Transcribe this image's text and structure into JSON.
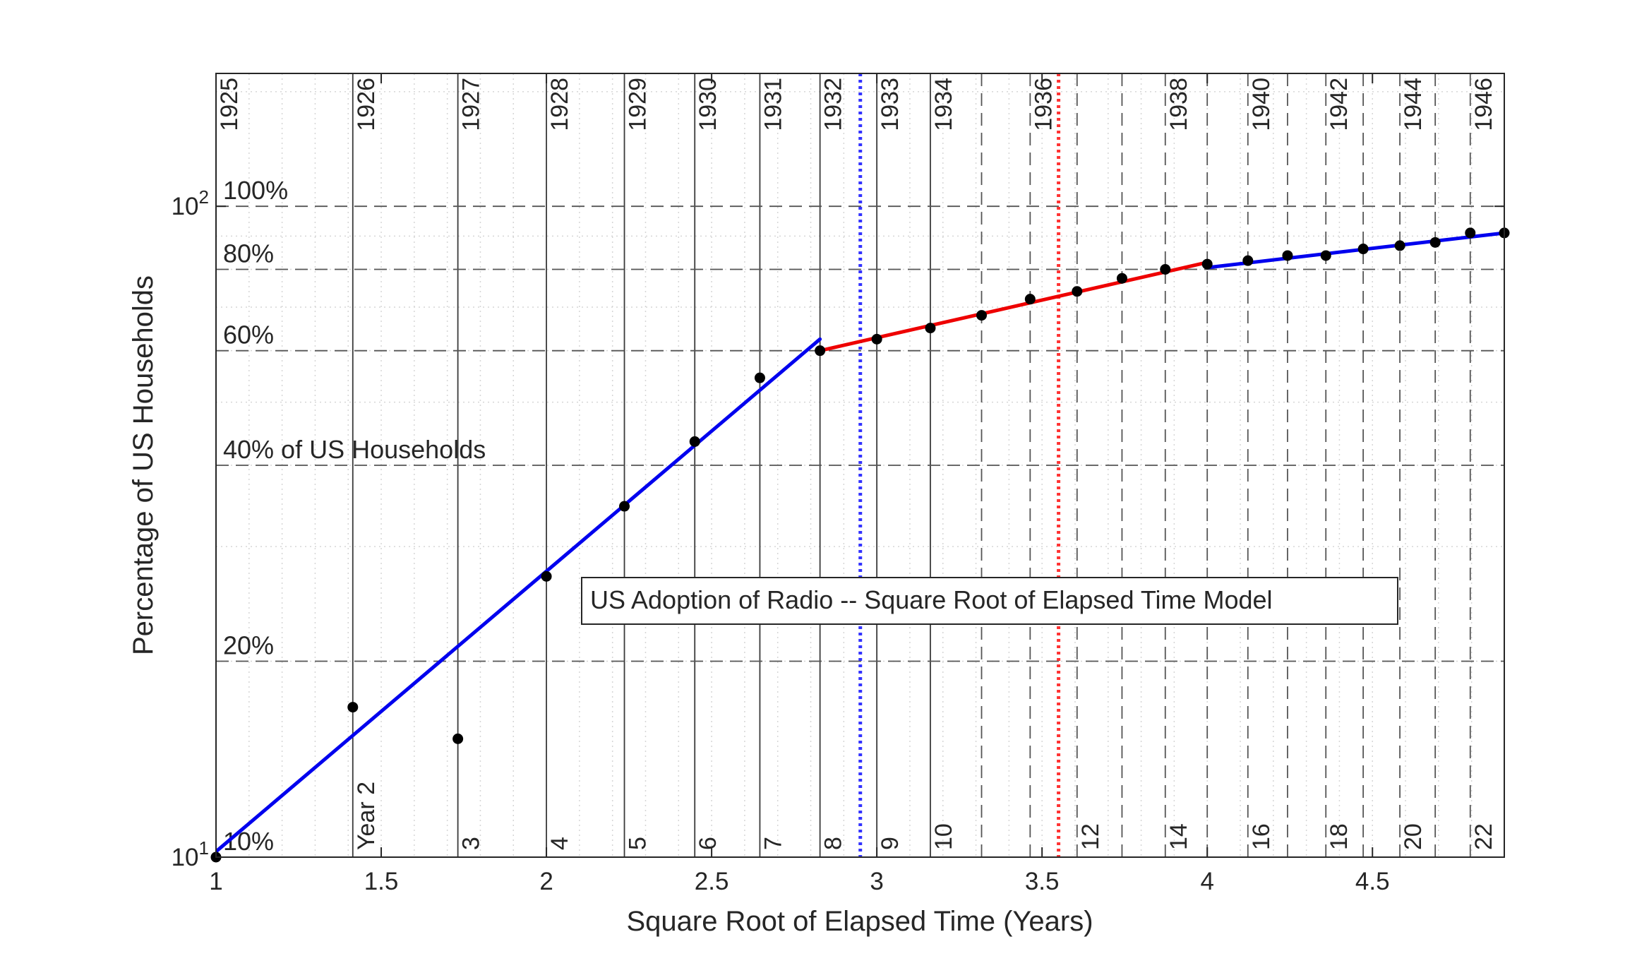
{
  "chart_data": {
    "type": "scatter",
    "title": "US Adoption of Radio -- Square Root of Elapsed Time Model",
    "xlabel": "Square Root of Elapsed Time (Years)",
    "ylabel": "Percentage of US Households",
    "x_scale": "linear",
    "y_scale": "log",
    "xlim": [
      1,
      4.899
    ],
    "ylim": [
      10,
      160
    ],
    "x_ticks": [
      1,
      1.5,
      2,
      2.5,
      3,
      3.5,
      4,
      4.5
    ],
    "x_tick_labels": [
      "1",
      "1.5",
      "2",
      "2.5",
      "3",
      "3.5",
      "4",
      "4.5"
    ],
    "y_ticks": [
      {
        "value": 10,
        "base": "10",
        "exp": "1"
      },
      {
        "value": 100,
        "base": "10",
        "exp": "2"
      }
    ],
    "grid": "minor dotted",
    "series": [
      {
        "kind": "points",
        "color": "#000000",
        "x": [
          1,
          1.414,
          1.732,
          2,
          2.236,
          2.449,
          2.646,
          2.828,
          3,
          3.162,
          3.317,
          3.464,
          3.606,
          3.742,
          3.873,
          4,
          4.123,
          4.243,
          4.359,
          4.472,
          4.583,
          4.69,
          4.796,
          4.899
        ],
        "y": [
          10,
          17,
          15.2,
          27,
          34.6,
          43.5,
          54.5,
          60,
          62.5,
          65,
          68,
          72,
          74,
          77.5,
          80,
          81.5,
          82.5,
          84,
          84,
          86,
          87,
          88,
          91,
          91
        ]
      },
      {
        "kind": "line",
        "color": "#0000ee",
        "x": [
          1,
          2.828
        ],
        "y": [
          10.2,
          62.5
        ]
      },
      {
        "kind": "line",
        "color": "#ee0000",
        "x": [
          2.828,
          4
        ],
        "y": [
          60,
          82
        ]
      },
      {
        "kind": "line",
        "color": "#0000ee",
        "x": [
          4,
          4.899
        ],
        "y": [
          80.5,
          91
        ]
      }
    ],
    "reference_lines": [
      {
        "x": 2.95,
        "color": "#3333ff",
        "style": "dotted"
      },
      {
        "x": 3.55,
        "color": "#ff3333",
        "style": "dotted"
      }
    ],
    "vertical_year_lines": [
      {
        "x": 1,
        "year": "1925",
        "count": ""
      },
      {
        "x": 1.414,
        "year": "1926",
        "count": "Year 2"
      },
      {
        "x": 1.732,
        "year": "1927",
        "count": "3"
      },
      {
        "x": 2,
        "year": "1928",
        "count": "4"
      },
      {
        "x": 2.236,
        "year": "1929",
        "count": "5"
      },
      {
        "x": 2.449,
        "year": "1930",
        "count": "6"
      },
      {
        "x": 2.646,
        "year": "1931",
        "count": "7"
      },
      {
        "x": 2.828,
        "year": "1932",
        "count": "8"
      },
      {
        "x": 3,
        "year": "1933",
        "count": "9"
      },
      {
        "x": 3.162,
        "year": "1934",
        "count": "10"
      },
      {
        "x": 3.317,
        "year": "",
        "count": ""
      },
      {
        "x": 3.464,
        "year": "1936",
        "count": ""
      },
      {
        "x": 3.606,
        "year": "",
        "count": "12"
      },
      {
        "x": 3.742,
        "year": "",
        "count": ""
      },
      {
        "x": 3.873,
        "year": "1938",
        "count": "14"
      },
      {
        "x": 4,
        "year": "",
        "count": ""
      },
      {
        "x": 4.123,
        "year": "1940",
        "count": "16"
      },
      {
        "x": 4.243,
        "year": "",
        "count": ""
      },
      {
        "x": 4.359,
        "year": "1942",
        "count": "18"
      },
      {
        "x": 4.472,
        "year": "",
        "count": ""
      },
      {
        "x": 4.583,
        "year": "1944",
        "count": "20"
      },
      {
        "x": 4.69,
        "year": "",
        "count": ""
      },
      {
        "x": 4.796,
        "year": "1946",
        "count": "22"
      }
    ],
    "pct_lines": [
      {
        "value": 10,
        "label": "10%"
      },
      {
        "value": 20,
        "label": "20%"
      },
      {
        "value": 40,
        "label": "40% of US Households"
      },
      {
        "value": 60,
        "label": "60%"
      },
      {
        "value": 80,
        "label": "80%"
      },
      {
        "value": 100,
        "label": "100%"
      }
    ]
  }
}
